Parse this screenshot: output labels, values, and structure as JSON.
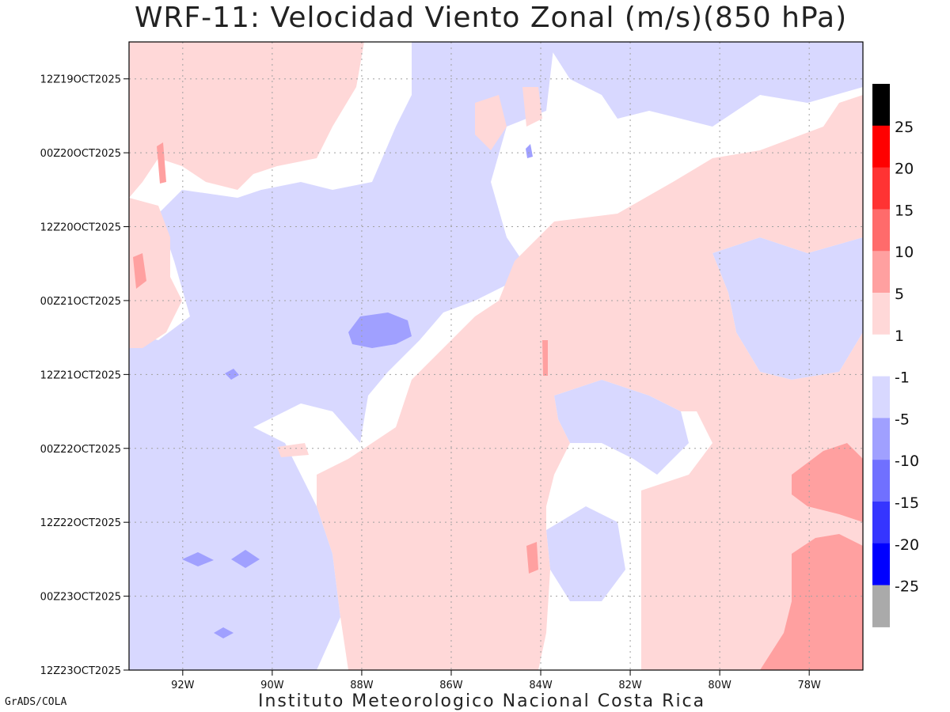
{
  "chart_data": {
    "type": "heatmap",
    "title": "WRF-11: Velocidad  Viento Zonal (m/s)(850 hPa)",
    "x_ticks": [
      "92W",
      "90W",
      "88W",
      "86W",
      "84W",
      "82W",
      "80W",
      "78W"
    ],
    "x_tick_values": [
      -92,
      -90,
      -88,
      -86,
      -84,
      -82,
      -80,
      -78
    ],
    "xlim": [
      -93.2,
      -76.8
    ],
    "y_ticks": [
      "12Z19OCT2025",
      "00Z20OCT2025",
      "12Z20OCT2025",
      "00Z21OCT2025",
      "12Z21OCT2025",
      "00Z22OCT2025",
      "12Z22OCT2025",
      "00Z23OCT2025",
      "12Z23OCT2025"
    ],
    "y_tick_values": [
      0,
      12,
      24,
      36,
      48,
      60,
      72,
      84,
      96
    ],
    "ylim": [
      -6,
      96
    ],
    "grid": true,
    "legend_position": "right",
    "colorbar": {
      "labels": [
        "25",
        "20",
        "15",
        "10",
        "5",
        "1",
        "-1",
        "-5",
        "-10",
        "-15",
        "-20",
        "-25"
      ],
      "boxes": [
        {
          "min": 25,
          "max": 30,
          "color": "#000000"
        },
        {
          "min": 20,
          "max": 25,
          "color": "#ff0000"
        },
        {
          "min": 15,
          "max": 20,
          "color": "#ff3333"
        },
        {
          "min": 10,
          "max": 15,
          "color": "#ff6b6b"
        },
        {
          "min": 5,
          "max": 10,
          "color": "#ffa0a0"
        },
        {
          "min": 1,
          "max": 5,
          "color": "#ffd8d8"
        },
        {
          "min": -1,
          "max": 1,
          "color": "#ffffff"
        },
        {
          "min": -5,
          "max": -1,
          "color": "#d8d8ff"
        },
        {
          "min": -10,
          "max": -5,
          "color": "#a0a0ff"
        },
        {
          "min": -15,
          "max": -10,
          "color": "#7070ff"
        },
        {
          "min": -20,
          "max": -15,
          "color": "#3535ff"
        },
        {
          "min": -25,
          "max": -20,
          "color": "#0000ff"
        },
        {
          "min": -30,
          "max": -25,
          "color": "#aaaaaa"
        }
      ]
    },
    "colors": {
      "pos1": "#ffd8d8",
      "pos5": "#ffa0a0",
      "pos10": "#ff6b6b",
      "neg1": "#d8d8ff",
      "neg5": "#a0a0ff",
      "neg10": "#7070ff",
      "zero": "#ffffff"
    }
  },
  "footer": {
    "left": "GrADS/COLA",
    "center": "Instituto Meteorologico Nacional Costa Rica"
  }
}
